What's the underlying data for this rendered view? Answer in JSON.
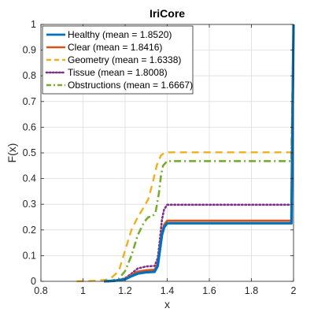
{
  "chart_data": {
    "type": "line",
    "title": "IriCore",
    "xlabel": "x",
    "ylabel": "F(x)",
    "xlim": [
      0.8,
      2.0
    ],
    "ylim": [
      0,
      1
    ],
    "x_ticks": [
      "0.8",
      "1",
      "1.2",
      "1.4",
      "1.6",
      "1.8",
      "2"
    ],
    "y_ticks": [
      "0",
      "0.1",
      "0.2",
      "0.3",
      "0.4",
      "0.5",
      "0.6",
      "0.7",
      "0.8",
      "0.9",
      "1"
    ],
    "grid": true,
    "legend_position": "top-left",
    "series": [
      {
        "name": "Healthy (mean = 1.8520)",
        "color": "#0072BD",
        "style": "solid",
        "points": [
          [
            1.1,
            0.0
          ],
          [
            1.15,
            0.002
          ],
          [
            1.2,
            0.008
          ],
          [
            1.23,
            0.02
          ],
          [
            1.26,
            0.03
          ],
          [
            1.3,
            0.035
          ],
          [
            1.34,
            0.037
          ],
          [
            1.355,
            0.06
          ],
          [
            1.365,
            0.12
          ],
          [
            1.375,
            0.18
          ],
          [
            1.385,
            0.21
          ],
          [
            1.4,
            0.226
          ],
          [
            1.99,
            0.226
          ],
          [
            2.0,
            1.0
          ]
        ]
      },
      {
        "name": "Clear (mean = 1.8416)",
        "color": "#D95319",
        "style": "solid",
        "points": [
          [
            1.1,
            0.0
          ],
          [
            1.15,
            0.003
          ],
          [
            1.2,
            0.01
          ],
          [
            1.23,
            0.025
          ],
          [
            1.26,
            0.038
          ],
          [
            1.3,
            0.043
          ],
          [
            1.34,
            0.045
          ],
          [
            1.355,
            0.07
          ],
          [
            1.365,
            0.13
          ],
          [
            1.375,
            0.19
          ],
          [
            1.385,
            0.22
          ],
          [
            1.4,
            0.236
          ],
          [
            1.99,
            0.236
          ],
          [
            2.0,
            1.0
          ]
        ]
      },
      {
        "name": "Geometry (mean = 1.6338)",
        "color": "#EDB120",
        "style": "dashed",
        "points": [
          [
            0.97,
            0.0
          ],
          [
            1.05,
            0.002
          ],
          [
            1.1,
            0.005
          ],
          [
            1.13,
            0.01
          ],
          [
            1.17,
            0.04
          ],
          [
            1.2,
            0.12
          ],
          [
            1.23,
            0.2
          ],
          [
            1.26,
            0.25
          ],
          [
            1.29,
            0.29
          ],
          [
            1.31,
            0.32
          ],
          [
            1.33,
            0.38
          ],
          [
            1.35,
            0.45
          ],
          [
            1.37,
            0.49
          ],
          [
            1.39,
            0.502
          ],
          [
            1.99,
            0.502
          ],
          [
            2.0,
            1.0
          ]
        ]
      },
      {
        "name": "Tissue (mean = 1.8008)",
        "color": "#7E2F8E",
        "style": "dotted",
        "points": [
          [
            1.12,
            0.0
          ],
          [
            1.16,
            0.003
          ],
          [
            1.2,
            0.012
          ],
          [
            1.23,
            0.03
          ],
          [
            1.26,
            0.05
          ],
          [
            1.3,
            0.058
          ],
          [
            1.34,
            0.06
          ],
          [
            1.355,
            0.09
          ],
          [
            1.365,
            0.16
          ],
          [
            1.375,
            0.24
          ],
          [
            1.385,
            0.28
          ],
          [
            1.4,
            0.298
          ],
          [
            1.99,
            0.298
          ],
          [
            2.0,
            1.0
          ]
        ]
      },
      {
        "name": "Obstructions (mean = 1.6667)",
        "color": "#77AC30",
        "style": "dashdot",
        "points": [
          [
            1.12,
            0.0
          ],
          [
            1.17,
            0.01
          ],
          [
            1.2,
            0.04
          ],
          [
            1.23,
            0.1
          ],
          [
            1.26,
            0.18
          ],
          [
            1.29,
            0.23
          ],
          [
            1.31,
            0.25
          ],
          [
            1.33,
            0.252
          ],
          [
            1.345,
            0.27
          ],
          [
            1.36,
            0.34
          ],
          [
            1.37,
            0.41
          ],
          [
            1.38,
            0.45
          ],
          [
            1.4,
            0.468
          ],
          [
            1.99,
            0.468
          ],
          [
            2.0,
            1.0
          ]
        ]
      }
    ]
  }
}
